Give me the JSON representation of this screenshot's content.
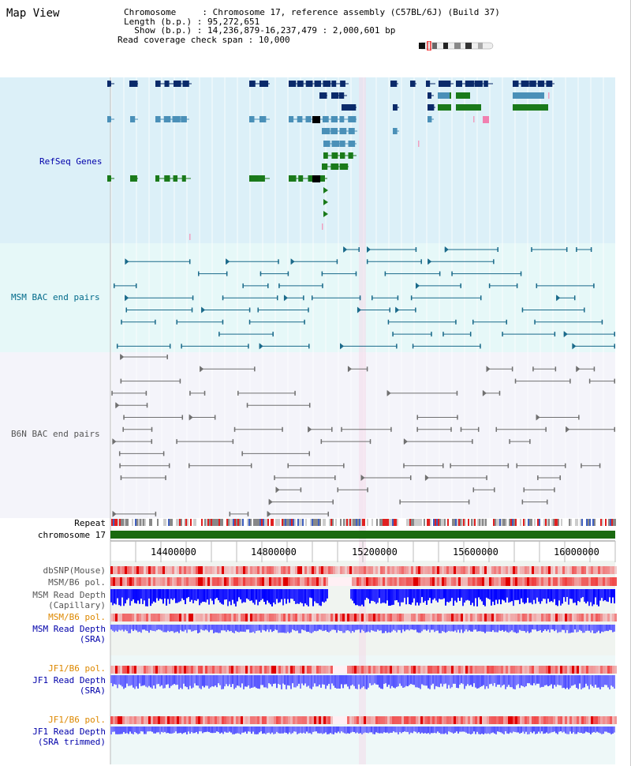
{
  "title": "Map View",
  "info": {
    "chromosome_key": "Chromosome",
    "chromosome_val": "Chromosome 17, reference assembly (C57BL/6J) (Build 37)",
    "length_key": "Length (b.p.)",
    "length_val": "95,272,651",
    "show_key": "Show (b.p.)",
    "show_val": "14,236,879-16,237,479 : 2,000,601 bp",
    "span_key": "Read coverage check span",
    "span_val": "10,000"
  },
  "tracks": {
    "refseq": "RefSeq Genes",
    "msm_bac": "MSM BAC end pairs",
    "b6n_bac": "B6N BAC end pairs",
    "repeat": "Repeat",
    "chromosome": "chromosome 17",
    "dbsnp": "dbSNP(Mouse)",
    "msm_b6_pol_1": "MSM/B6 pol.",
    "msm_read_cap_1": "MSM Read Depth",
    "msm_read_cap_2": "(Capillary)",
    "msm_b6_pol_2": "MSM/B6 pol.",
    "msm_read_sra_1": "MSM Read Depth",
    "msm_read_sra_2": "(SRA)",
    "jf1_b6_pol_1": "JF1/B6 pol.",
    "jf1_read_sra_1": "JF1 Read Depth",
    "jf1_read_sra_2": "(SRA)",
    "jf1_b6_pol_2": "JF1/B6 pol.",
    "jf1_read_trim_1": "JF1 Read Depth",
    "jf1_read_trim_2": "(SRA trimmed)"
  },
  "axis": {
    "ticks": [
      "14400000",
      "14800000",
      "15200000",
      "15600000",
      "16000000"
    ]
  },
  "colors": {
    "refseq_bg": "#dcf0f8",
    "msm_bg": "#e6f8f8",
    "b6n_bg": "#f4f4fa",
    "gene_dark": "#0a2a6a",
    "gene_mid": "#4a90b8",
    "gene_green": "#1a7a1a",
    "bac_teal": "#1a6a8a",
    "bac_gray": "#707070",
    "label_blue": "#0000aa",
    "label_orange": "#dd8800",
    "label_teal": "#006a8a"
  }
}
